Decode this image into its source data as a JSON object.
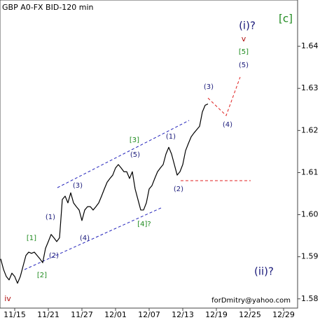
{
  "chart_data": {
    "type": "line",
    "title": "GBP A0-FX BID-120 min",
    "footer": "forDmitry@yahoo.com",
    "color": "#000000",
    "grid": false,
    "ylim": [
      1.5778,
      1.651
    ],
    "yticks": [
      1.58,
      1.59,
      {
        "value": 1.6,
        "label": "1.60"
      },
      1.61,
      1.62,
      1.63,
      1.64
    ],
    "categories": [
      null,
      null,
      null,
      null,
      null,
      "11/15",
      null,
      null,
      null,
      null,
      null,
      null,
      null,
      null,
      null,
      null,
      null,
      "11/21",
      null,
      null,
      null,
      null,
      null,
      null,
      null,
      null,
      null,
      null,
      null,
      "11/27",
      null,
      null,
      null,
      null,
      null,
      null,
      null,
      null,
      null,
      null,
      null,
      "12/01",
      null,
      null,
      null,
      null,
      null,
      null,
      null,
      null,
      null,
      null,
      null,
      "12/07",
      null,
      null,
      null,
      null,
      null,
      null,
      null,
      null,
      null,
      null,
      null,
      "12/13",
      null,
      null,
      null,
      null,
      null,
      null,
      null,
      null,
      null,
      null,
      null,
      "12/19",
      null,
      null,
      null,
      null,
      null,
      null,
      null,
      null,
      null,
      null,
      null,
      "12/25",
      null,
      null,
      null,
      null,
      null,
      null,
      null,
      null,
      null,
      null,
      null,
      "12/29",
      null,
      null,
      null,
      null,
      null
    ],
    "values": [
      1.5895,
      1.587,
      1.5853,
      1.5845,
      1.5861,
      1.5853,
      1.5837,
      1.5853,
      1.5878,
      1.5903,
      1.5911,
      1.5908,
      1.5911,
      1.5903,
      1.5895,
      1.5886,
      1.592,
      1.5936,
      1.5953,
      1.5945,
      1.5936,
      1.5945,
      1.6036,
      1.6044,
      1.6028,
      1.6052,
      1.6028,
      1.6019,
      1.6011,
      1.5986,
      1.6011,
      1.6019,
      1.6019,
      1.6011,
      1.6019,
      1.6028,
      1.6044,
      1.6061,
      1.6077,
      1.6086,
      1.6094,
      1.6111,
      1.6119,
      1.6111,
      1.6102,
      1.6102,
      1.6086,
      1.6102,
      1.6061,
      1.6036,
      1.6011,
      1.6011,
      1.6028,
      1.6061,
      1.6069,
      1.6086,
      1.6102,
      1.6111,
      1.6119,
      1.6144,
      1.616,
      1.6144,
      1.6119,
      1.6094,
      1.6102,
      1.6119,
      1.6152,
      1.6169,
      1.6185,
      1.6194,
      1.6202,
      1.621,
      1.6244,
      1.626,
      1.6263,
      null,
      null,
      null,
      null,
      null,
      null,
      null,
      null,
      null,
      null,
      null,
      null,
      null,
      null,
      null,
      null,
      null,
      null,
      null,
      null,
      null,
      null,
      null,
      null,
      null,
      null,
      null,
      null,
      null,
      null,
      null,
      null
    ],
    "annotations": [
      "(i)?",
      "v",
      "[5]",
      "(5)",
      "(3)",
      "(4)",
      "[c]",
      "[3]",
      "(5)",
      "(1)",
      "(2)",
      "(1)",
      "(3)",
      "(4)",
      "[4]?",
      "[1]",
      "(2)",
      "[2]",
      "(ii)?",
      "iv"
    ]
  }
}
